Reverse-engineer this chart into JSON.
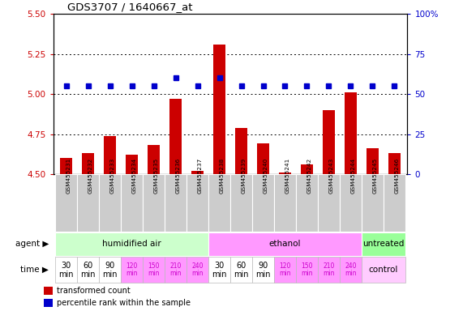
{
  "title": "GDS3707 / 1640667_at",
  "samples": [
    "GSM455231",
    "GSM455232",
    "GSM455233",
    "GSM455234",
    "GSM455235",
    "GSM455236",
    "GSM455237",
    "GSM455238",
    "GSM455239",
    "GSM455240",
    "GSM455241",
    "GSM455242",
    "GSM455243",
    "GSM455244",
    "GSM455245",
    "GSM455246"
  ],
  "bar_values": [
    4.6,
    4.63,
    4.74,
    4.62,
    4.68,
    4.97,
    4.52,
    5.31,
    4.79,
    4.69,
    4.51,
    4.56,
    4.9,
    5.01,
    4.66,
    4.63
  ],
  "dot_values": [
    55,
    55,
    55,
    55,
    55,
    60,
    55,
    60,
    55,
    55,
    55,
    55,
    55,
    55,
    55,
    55
  ],
  "ylim_left": [
    4.5,
    5.5
  ],
  "ylim_right": [
    0,
    100
  ],
  "yticks_left": [
    4.5,
    4.75,
    5.0,
    5.25,
    5.5
  ],
  "yticks_right": [
    0,
    25,
    50,
    75,
    100
  ],
  "bar_color": "#cc0000",
  "dot_color": "#0000cc",
  "bar_bottom": 4.5,
  "agent_groups": [
    {
      "label": "humidified air",
      "start": 0,
      "end": 7,
      "color": "#ccffcc"
    },
    {
      "label": "ethanol",
      "start": 7,
      "end": 14,
      "color": "#ff99ff"
    },
    {
      "label": "untreated",
      "start": 14,
      "end": 16,
      "color": "#99ff99"
    }
  ],
  "time_bg_colors": [
    "#ffffff",
    "#ffffff",
    "#ffffff",
    "#ff99ff",
    "#ff99ff",
    "#ff99ff",
    "#ff99ff",
    "#ffffff",
    "#ffffff",
    "#ffffff",
    "#ff99ff",
    "#ff99ff",
    "#ff99ff",
    "#ff99ff"
  ],
  "time_labels_14": [
    "30\nmin",
    "60\nmin",
    "90\nmin",
    "120\nmin",
    "150\nmin",
    "210\nmin",
    "240\nmin",
    "30\nmin",
    "60\nmin",
    "90\nmin",
    "120\nmin",
    "150\nmin",
    "210\nmin",
    "240\nmin"
  ],
  "time_small_indices": [
    3,
    4,
    5,
    6,
    10,
    11,
    12,
    13
  ],
  "agent_label": "agent",
  "time_label": "time",
  "legend_bar_label": "transformed count",
  "legend_dot_label": "percentile rank within the sample",
  "tick_color_left": "#cc0000",
  "tick_color_right": "#0000cc",
  "sample_bg_color": "#cccccc",
  "control_label": "control",
  "control_bg_color": "#ffccff",
  "grid_dotted_ticks": [
    4.75,
    5.0,
    5.25
  ]
}
